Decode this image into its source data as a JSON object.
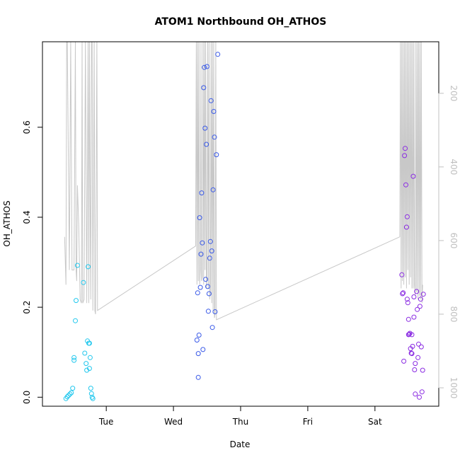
{
  "chart_data": {
    "type": "scatter",
    "title": "ATOM1 Northbound OH_ATHOS",
    "xlabel": "Date",
    "ylabel": "OH_ATHOS",
    "xlim": [
      -0.95,
      4.95
    ],
    "ylim": [
      -0.02,
      0.79
    ],
    "x_tick_labels": [
      "Tue",
      "Wed",
      "Thu",
      "Fri",
      "Sat"
    ],
    "x_tick_values": [
      0,
      1,
      2,
      3,
      4
    ],
    "y_ticks": [
      0.0,
      0.2,
      0.4,
      0.6
    ],
    "y_tick_labels": [
      "0.0",
      "0.2",
      "0.4",
      "0.6"
    ],
    "y2_ticks": [
      200,
      400,
      600,
      800,
      1000
    ],
    "y2_tick_labels": [
      "200",
      "400",
      "600",
      "800",
      "1000"
    ],
    "y2lim": [
      1050,
      60
    ],
    "grid": false,
    "legend": "none",
    "series": [
      {
        "color": "#22c8ee",
        "points": [
          [
            -0.6,
            -0.003
          ],
          [
            -0.58,
            0.001
          ],
          [
            -0.56,
            0.004
          ],
          [
            -0.54,
            0.007
          ],
          [
            -0.52,
            0.01
          ],
          [
            -0.5,
            0.02
          ],
          [
            -0.48,
            0.082
          ],
          [
            -0.48,
            0.088
          ],
          [
            -0.46,
            0.17
          ],
          [
            -0.45,
            0.215
          ],
          [
            -0.43,
            0.293
          ],
          [
            -0.34,
            0.255
          ],
          [
            -0.32,
            0.098
          ],
          [
            -0.3,
            0.075
          ],
          [
            -0.29,
            0.06
          ],
          [
            -0.28,
            0.125
          ],
          [
            -0.27,
            0.29
          ],
          [
            -0.26,
            0.12
          ],
          [
            -0.25,
            0.12
          ],
          [
            -0.25,
            0.064
          ],
          [
            -0.24,
            0.088
          ],
          [
            -0.23,
            0.02
          ],
          [
            -0.22,
            0.008
          ],
          [
            -0.21,
            0.0
          ],
          [
            -0.2,
            -0.003
          ]
        ]
      },
      {
        "color": "#3a5ae8",
        "points": [
          [
            1.35,
            0.127
          ],
          [
            1.36,
            0.232
          ],
          [
            1.37,
            0.097
          ],
          [
            1.37,
            0.044
          ],
          [
            1.38,
            0.138
          ],
          [
            1.39,
            0.399
          ],
          [
            1.4,
            0.244
          ],
          [
            1.41,
            0.318
          ],
          [
            1.42,
            0.454
          ],
          [
            1.43,
            0.343
          ],
          [
            1.44,
            0.106
          ],
          [
            1.45,
            0.688
          ],
          [
            1.46,
            0.733
          ],
          [
            1.47,
            0.598
          ],
          [
            1.48,
            0.262
          ],
          [
            1.49,
            0.562
          ],
          [
            1.5,
            0.735
          ],
          [
            1.51,
            0.246
          ],
          [
            1.52,
            0.191
          ],
          [
            1.53,
            0.23
          ],
          [
            1.54,
            0.309
          ],
          [
            1.55,
            0.346
          ],
          [
            1.56,
            0.659
          ],
          [
            1.57,
            0.325
          ],
          [
            1.58,
            0.155
          ],
          [
            1.59,
            0.461
          ],
          [
            1.6,
            0.635
          ],
          [
            1.61,
            0.578
          ],
          [
            1.62,
            0.19
          ],
          [
            1.64,
            0.539
          ],
          [
            1.66,
            0.762
          ]
        ]
      },
      {
        "color": "#8a2be2",
        "points": [
          [
            4.4,
            0.272
          ],
          [
            4.41,
            0.23
          ],
          [
            4.42,
            0.232
          ],
          [
            4.43,
            0.08
          ],
          [
            4.44,
            0.537
          ],
          [
            4.45,
            0.553
          ],
          [
            4.46,
            0.472
          ],
          [
            4.47,
            0.378
          ],
          [
            4.48,
            0.401
          ],
          [
            4.48,
            0.218
          ],
          [
            4.49,
            0.21
          ],
          [
            4.5,
            0.173
          ],
          [
            4.5,
            0.139
          ],
          [
            4.51,
            0.14
          ],
          [
            4.52,
            0.142
          ],
          [
            4.53,
            0.108
          ],
          [
            4.54,
            0.098
          ],
          [
            4.55,
            0.097
          ],
          [
            4.55,
            0.139
          ],
          [
            4.56,
            0.113
          ],
          [
            4.57,
            0.491
          ],
          [
            4.58,
            0.223
          ],
          [
            4.58,
            0.178
          ],
          [
            4.59,
            0.061
          ],
          [
            4.6,
            0.007
          ],
          [
            4.6,
            0.075
          ],
          [
            4.62,
            0.235
          ],
          [
            4.63,
            0.195
          ],
          [
            4.64,
            0.088
          ],
          [
            4.65,
            0.118
          ],
          [
            4.66,
            0.0
          ],
          [
            4.67,
            0.202
          ],
          [
            4.68,
            0.218
          ],
          [
            4.69,
            0.112
          ],
          [
            4.7,
            0.012
          ],
          [
            4.71,
            0.06
          ],
          [
            4.72,
            0.229
          ]
        ]
      }
    ],
    "line_series": {
      "color": "#c8c8c8",
      "points": [
        [
          -0.62,
          590
        ],
        [
          -0.6,
          720
        ],
        [
          -0.59,
          60
        ],
        [
          -0.58,
          60
        ],
        [
          -0.56,
          460
        ],
        [
          -0.55,
          680
        ],
        [
          -0.53,
          60
        ],
        [
          -0.51,
          680
        ],
        [
          -0.5,
          680
        ],
        [
          -0.48,
          680
        ],
        [
          -0.46,
          60
        ],
        [
          -0.45,
          680
        ],
        [
          -0.44,
          710
        ],
        [
          -0.43,
          450
        ],
        [
          -0.41,
          560
        ],
        [
          -0.39,
          760
        ],
        [
          -0.37,
          770
        ],
        [
          -0.36,
          60
        ],
        [
          -0.35,
          770
        ],
        [
          -0.33,
          760
        ],
        [
          -0.31,
          60
        ],
        [
          -0.29,
          770
        ],
        [
          -0.27,
          60
        ],
        [
          -0.26,
          770
        ],
        [
          -0.25,
          60
        ],
        [
          -0.24,
          490
        ],
        [
          -0.23,
          760
        ],
        [
          -0.22,
          60
        ],
        [
          -0.21,
          60
        ],
        [
          -0.2,
          790
        ],
        [
          -0.18,
          60
        ],
        [
          -0.17,
          790
        ],
        [
          -0.16,
          800
        ],
        [
          -0.14,
          60
        ],
        [
          -0.13,
          790
        ],
        [
          1.33,
          615
        ],
        [
          1.34,
          60
        ],
        [
          1.35,
          720
        ],
        [
          1.36,
          60
        ],
        [
          1.37,
          710
        ],
        [
          1.38,
          60
        ],
        [
          1.39,
          720
        ],
        [
          1.4,
          680
        ],
        [
          1.41,
          60
        ],
        [
          1.42,
          710
        ],
        [
          1.43,
          700
        ],
        [
          1.44,
          60
        ],
        [
          1.45,
          720
        ],
        [
          1.46,
          60
        ],
        [
          1.47,
          680
        ],
        [
          1.48,
          60
        ],
        [
          1.49,
          730
        ],
        [
          1.5,
          700
        ],
        [
          1.51,
          60
        ],
        [
          1.52,
          730
        ],
        [
          1.53,
          60
        ],
        [
          1.54,
          760
        ],
        [
          1.55,
          740
        ],
        [
          1.56,
          60
        ],
        [
          1.57,
          770
        ],
        [
          1.58,
          60
        ],
        [
          1.59,
          790
        ],
        [
          1.6,
          60
        ],
        [
          1.61,
          810
        ],
        [
          1.62,
          800
        ],
        [
          1.63,
          60
        ],
        [
          1.64,
          815
        ],
        [
          4.37,
          590
        ],
        [
          4.38,
          60
        ],
        [
          4.39,
          730
        ],
        [
          4.4,
          60
        ],
        [
          4.41,
          710
        ],
        [
          4.42,
          60
        ],
        [
          4.43,
          720
        ],
        [
          4.44,
          60
        ],
        [
          4.45,
          700
        ],
        [
          4.46,
          60
        ],
        [
          4.47,
          730
        ],
        [
          4.48,
          60
        ],
        [
          4.49,
          680
        ],
        [
          4.5,
          60
        ],
        [
          4.51,
          720
        ],
        [
          4.52,
          60
        ],
        [
          4.53,
          700
        ],
        [
          4.54,
          60
        ],
        [
          4.55,
          730
        ],
        [
          4.56,
          60
        ],
        [
          4.57,
          730
        ],
        [
          4.58,
          60
        ],
        [
          4.59,
          720
        ],
        [
          4.6,
          750
        ],
        [
          4.61,
          60
        ],
        [
          4.62,
          740
        ],
        [
          4.63,
          60
        ],
        [
          4.64,
          760
        ],
        [
          4.65,
          60
        ],
        [
          4.66,
          750
        ],
        [
          4.67,
          60
        ],
        [
          4.68,
          760
        ],
        [
          4.69,
          60
        ],
        [
          4.7,
          770
        ],
        [
          4.71,
          720
        ]
      ]
    }
  }
}
